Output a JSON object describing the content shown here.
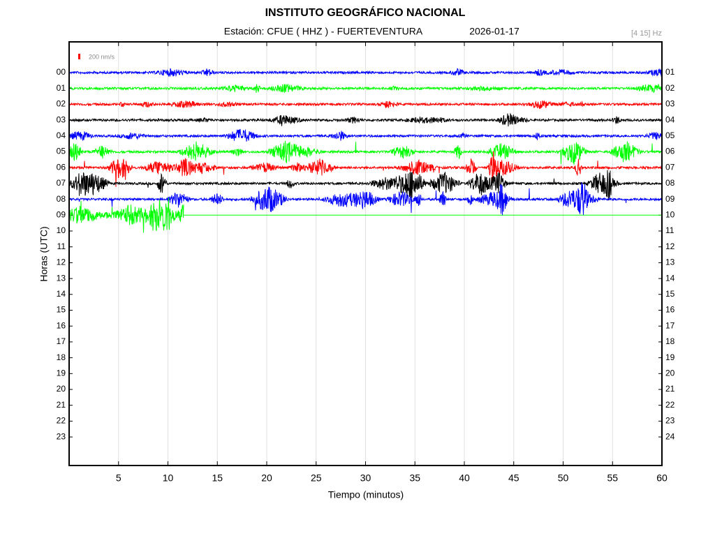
{
  "chart_data": {
    "type": "helicorder",
    "title": "INSTITUTO GEOGRÁFICO NACIONAL",
    "station": "Estación:  CFUE ( HHZ ) - FUERTEVENTURA",
    "date": "2026-01-17",
    "filter": "[4 15] Hz",
    "scale": "200 nm/s",
    "scale_color": "#ff0000",
    "xlabel": "Tiempo (minutos)",
    "ylabel": "Horas (UTC)",
    "xlim": [
      0,
      60
    ],
    "xticks": [
      5,
      10,
      15,
      20,
      25,
      30,
      35,
      40,
      45,
      50,
      55,
      60
    ],
    "grid": true,
    "rows_left": [
      "00",
      "01",
      "02",
      "03",
      "04",
      "05",
      "06",
      "07",
      "08",
      "09",
      "10",
      "11",
      "12",
      "13",
      "14",
      "15",
      "16",
      "17",
      "18",
      "19",
      "20",
      "21",
      "22",
      "23"
    ],
    "rows_right": [
      "01",
      "02",
      "03",
      "04",
      "05",
      "06",
      "07",
      "08",
      "09",
      "10",
      "11",
      "12",
      "13",
      "14",
      "15",
      "16",
      "17",
      "18",
      "19",
      "20",
      "21",
      "22",
      "23",
      "24"
    ],
    "traces": [
      {
        "color": "#0000ff",
        "end": 60
      },
      {
        "color": "#00ff00",
        "end": 60
      },
      {
        "color": "#ff0000",
        "end": 60
      },
      {
        "color": "#000000",
        "end": 60
      },
      {
        "color": "#0000ff",
        "end": 60
      },
      {
        "color": "#00ff00",
        "end": 60
      },
      {
        "color": "#ff0000",
        "end": 60
      },
      {
        "color": "#000000",
        "end": 60
      },
      {
        "color": "#0000ff",
        "end": 60
      },
      {
        "color": "#00ff00",
        "end": 11.6
      }
    ]
  }
}
